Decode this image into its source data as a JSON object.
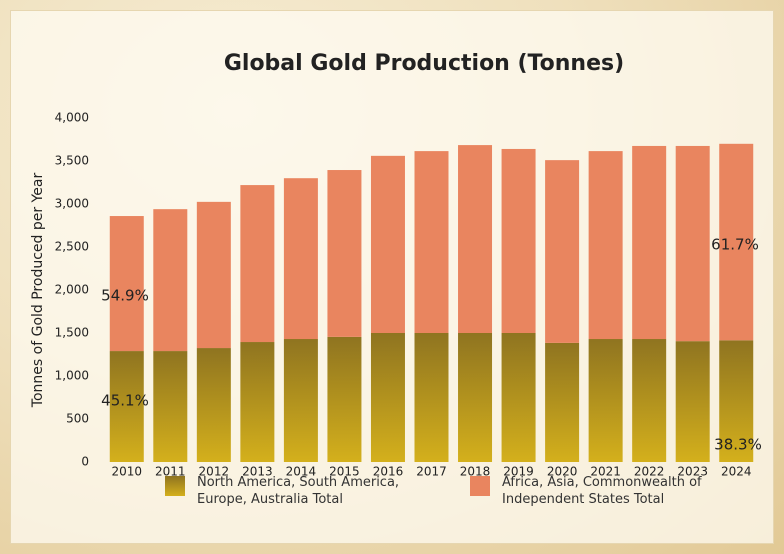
{
  "chart_data": {
    "type": "stacked_bar",
    "title": "Global Gold Production (Tonnes)",
    "y_label": "Tonnes of Gold Produced per Year",
    "categories": [
      "2010",
      "2011",
      "2012",
      "2013",
      "2014",
      "2015",
      "2016",
      "2017",
      "2018",
      "2019",
      "2020",
      "2021",
      "2022",
      "2023",
      "2024"
    ],
    "series": [
      {
        "name": "North America, South America, Europe, Australia Total",
        "color": "#d4b01c",
        "values": [
          1290,
          1290,
          1325,
          1395,
          1430,
          1455,
          1500,
          1500,
          1500,
          1500,
          1385,
          1430,
          1430,
          1405,
          1415
        ]
      },
      {
        "name": "Africa, Asia, Commonwealth of Independent States Total",
        "color": "#e9855f",
        "values": [
          1570,
          1650,
          1700,
          1825,
          1870,
          1940,
          2060,
          2115,
          2185,
          2140,
          2125,
          2185,
          2245,
          2270,
          2285
        ]
      }
    ],
    "annotations": [
      "54.9%",
      "45.1%",
      "61.7%",
      "38.3%"
    ],
    "ylim": [
      0,
      4000
    ],
    "yticks": [
      0,
      500,
      {
        "value": 1000,
        "label": "1,000"
      },
      {
        "value": 1500,
        "label": "1,500"
      },
      {
        "value": 2000,
        "label": "2,000"
      },
      {
        "value": 2500,
        "label": "2,500"
      },
      {
        "value": 3000,
        "label": "3,000"
      },
      {
        "value": 3500,
        "label": "3,500"
      },
      {
        "value": 4000,
        "label": "4,000"
      }
    ],
    "grid": false
  }
}
